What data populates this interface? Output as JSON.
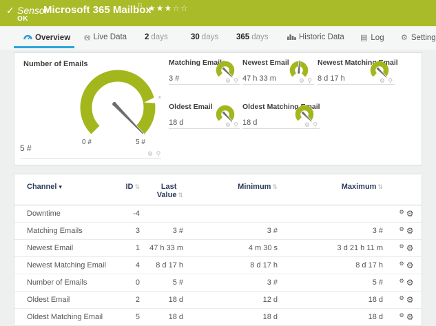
{
  "colors": {
    "band_green": "#a9bb28",
    "gauge_green": "#a3b71d",
    "accent_blue": "#2aa4da",
    "header_navy": "#2b3a5c"
  },
  "header": {
    "check": "✓",
    "kind": "Sensor",
    "title": "Microsoft 365 Mailbox",
    "flag": "⚐",
    "stars_filled": "★★★",
    "stars_empty": "☆☆",
    "status": "OK"
  },
  "tabs": {
    "overview": "Overview",
    "live_data": "Live Data",
    "d2_num": "2",
    "d2_unit": "days",
    "d30_num": "30",
    "d30_unit": "days",
    "d365_num": "365",
    "d365_unit": "days",
    "historic": "Historic Data",
    "log": "Log",
    "settings": "Settings"
  },
  "icons": {
    "broadcast": "((•))",
    "log": "▤",
    "gear": "⚙",
    "pin": "⚲",
    "sort": "⇅",
    "sort_desc": "▾"
  },
  "gauges": {
    "main": {
      "title": "Number of Emails",
      "value": "5 #",
      "scale_min": "0 #",
      "scale_max": "5 #",
      "marker_label": "x",
      "needle_deg": 136
    },
    "small": [
      {
        "title": "Matching Emails",
        "value": "3 #",
        "needle_deg": 135
      },
      {
        "title": "Newest Email",
        "value": "47 h 33 m",
        "needle_deg": 4
      },
      {
        "title": "Newest Matching Email",
        "value": "8 d 17 h",
        "needle_deg": 135
      },
      {
        "title": "Oldest Email",
        "value": "18 d",
        "needle_deg": 137
      },
      {
        "title": "Oldest Matching Email",
        "value": "18 d",
        "needle_deg": 135
      }
    ]
  },
  "table": {
    "columns": {
      "channel": "Channel",
      "id": "ID",
      "last_value": "Last Value",
      "minimum": "Minimum",
      "maximum": "Maximum"
    },
    "rows": [
      {
        "channel": "Downtime",
        "id": "-4",
        "last": "",
        "min": "",
        "max": ""
      },
      {
        "channel": "Matching Emails",
        "id": "3",
        "last": "3 #",
        "min": "3 #",
        "max": "3 #"
      },
      {
        "channel": "Newest Email",
        "id": "1",
        "last": "47 h 33 m",
        "min": "4 m 30 s",
        "max": "3 d 21 h 11 m"
      },
      {
        "channel": "Newest Matching Email",
        "id": "4",
        "last": "8 d 17 h",
        "min": "8 d 17 h",
        "max": "8 d 17 h"
      },
      {
        "channel": "Number of Emails",
        "id": "0",
        "last": "5 #",
        "min": "3 #",
        "max": "5 #"
      },
      {
        "channel": "Oldest Email",
        "id": "2",
        "last": "18 d",
        "min": "12 d",
        "max": "18 d"
      },
      {
        "channel": "Oldest Matching Email",
        "id": "5",
        "last": "18 d",
        "min": "18 d",
        "max": "18 d"
      }
    ]
  }
}
